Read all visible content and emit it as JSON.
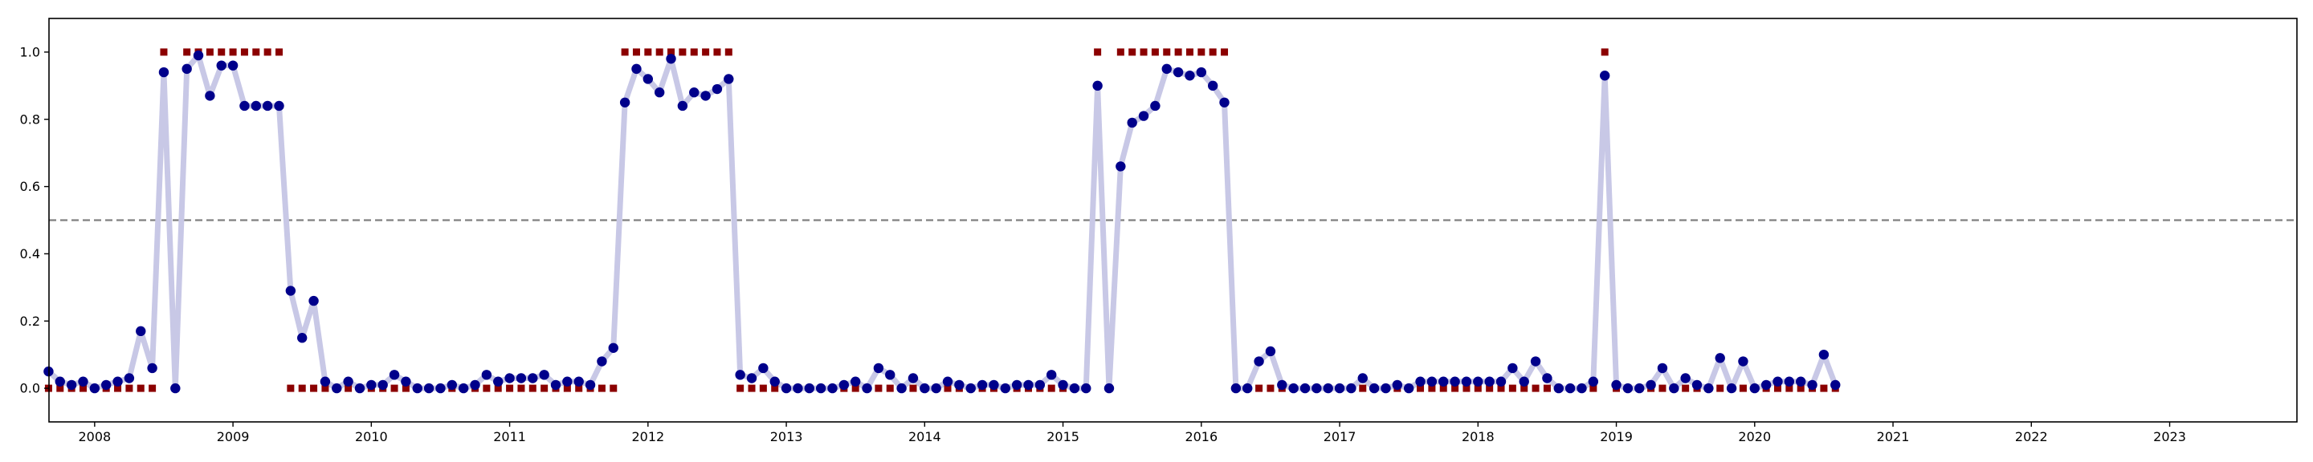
{
  "chart_data": {
    "type": "line",
    "title": "",
    "xlabel": "",
    "ylabel": "",
    "x_start": "2007-09",
    "x_end": "2023-10",
    "xlim": [
      2007.67,
      2023.92
    ],
    "ylim": [
      -0.1,
      1.1
    ],
    "x_ticks": [
      "2008",
      "2009",
      "2010",
      "2011",
      "2012",
      "2013",
      "2014",
      "2015",
      "2016",
      "2017",
      "2018",
      "2019",
      "2020",
      "2021",
      "2022",
      "2023"
    ],
    "y_ticks": [
      "0.0",
      "0.2",
      "0.4",
      "0.6",
      "0.8",
      "1.0"
    ],
    "threshold": 0.5,
    "grid": false,
    "legend": "none",
    "series": [
      {
        "kind": "probability",
        "line_color": "#c8c8e6",
        "marker_color": "#00008b",
        "values": [
          0.05,
          0.02,
          0.01,
          0.02,
          0.0,
          0.01,
          0.02,
          0.03,
          0.17,
          0.06,
          0.94,
          0.0,
          0.95,
          0.99,
          0.87,
          0.96,
          0.96,
          0.84,
          0.84,
          0.84,
          0.84,
          0.29,
          0.15,
          0.26,
          0.02,
          0.0,
          0.02,
          0.0,
          0.01,
          0.01,
          0.04,
          0.02,
          0.0,
          0.0,
          0.0,
          0.01,
          0.0,
          0.01,
          0.04,
          0.02,
          0.03,
          0.03,
          0.03,
          0.04,
          0.01,
          0.02,
          0.02,
          0.01,
          0.08,
          0.12,
          0.85,
          0.95,
          0.92,
          0.88,
          0.98,
          0.84,
          0.88,
          0.87,
          0.89,
          0.92,
          0.04,
          0.03,
          0.06,
          0.02,
          0.0,
          0.0,
          0.0,
          0.0,
          0.0,
          0.01,
          0.02,
          0.0,
          0.06,
          0.04,
          0.0,
          0.03,
          0.0,
          0.0,
          0.02,
          0.01,
          0.0,
          0.01,
          0.01,
          0.0,
          0.01,
          0.01,
          0.01,
          0.04,
          0.01,
          0.0,
          0.0,
          0.9,
          0.0,
          0.66,
          0.79,
          0.81,
          0.84,
          0.95,
          0.94,
          0.93,
          0.94,
          0.9,
          0.85,
          0.0,
          0.0,
          0.08,
          0.11,
          0.01,
          0.0,
          0.0,
          0.0,
          0.0,
          0.0,
          0.0,
          0.03,
          0.0,
          0.0,
          0.01,
          0.0,
          0.02,
          0.02,
          0.02,
          0.02,
          0.02,
          0.02,
          0.02,
          0.02,
          0.06,
          0.02,
          0.08,
          0.03,
          0.0,
          0.0,
          0.0,
          0.02,
          0.93,
          0.01,
          0.0,
          0.0,
          0.01,
          0.06,
          0.0,
          0.03,
          0.01,
          0.0,
          0.09,
          0.0,
          0.08,
          0.0,
          0.01,
          0.02,
          0.02,
          0.02,
          0.01,
          0.1,
          0.01
        ]
      },
      {
        "kind": "binary",
        "marker_color": "#8b0000",
        "values": [
          0,
          0,
          0,
          0,
          0,
          0,
          0,
          0,
          0,
          0,
          1,
          0,
          1,
          1,
          1,
          1,
          1,
          1,
          1,
          1,
          1,
          0,
          0,
          0,
          0,
          0,
          0,
          0,
          0,
          0,
          0,
          0,
          0,
          0,
          0,
          0,
          0,
          0,
          0,
          0,
          0,
          0,
          0,
          0,
          0,
          0,
          0,
          0,
          0,
          0,
          1,
          1,
          1,
          1,
          1,
          1,
          1,
          1,
          1,
          1,
          0,
          0,
          0,
          0,
          0,
          0,
          0,
          0,
          0,
          0,
          0,
          0,
          0,
          0,
          0,
          0,
          0,
          0,
          0,
          0,
          0,
          0,
          0,
          0,
          0,
          0,
          0,
          0,
          0,
          0,
          0,
          1,
          0,
          1,
          1,
          1,
          1,
          1,
          1,
          1,
          1,
          1,
          1,
          0,
          0,
          0,
          0,
          0,
          0,
          0,
          0,
          0,
          0,
          0,
          0,
          0,
          0,
          0,
          0,
          0,
          0,
          0,
          0,
          0,
          0,
          0,
          0,
          0,
          0,
          0,
          0,
          0,
          0,
          0,
          0,
          1,
          0,
          0,
          0,
          0,
          0,
          0,
          0,
          0,
          0,
          0,
          0,
          0,
          0,
          0,
          0,
          0,
          0,
          0,
          0,
          0
        ]
      }
    ]
  }
}
